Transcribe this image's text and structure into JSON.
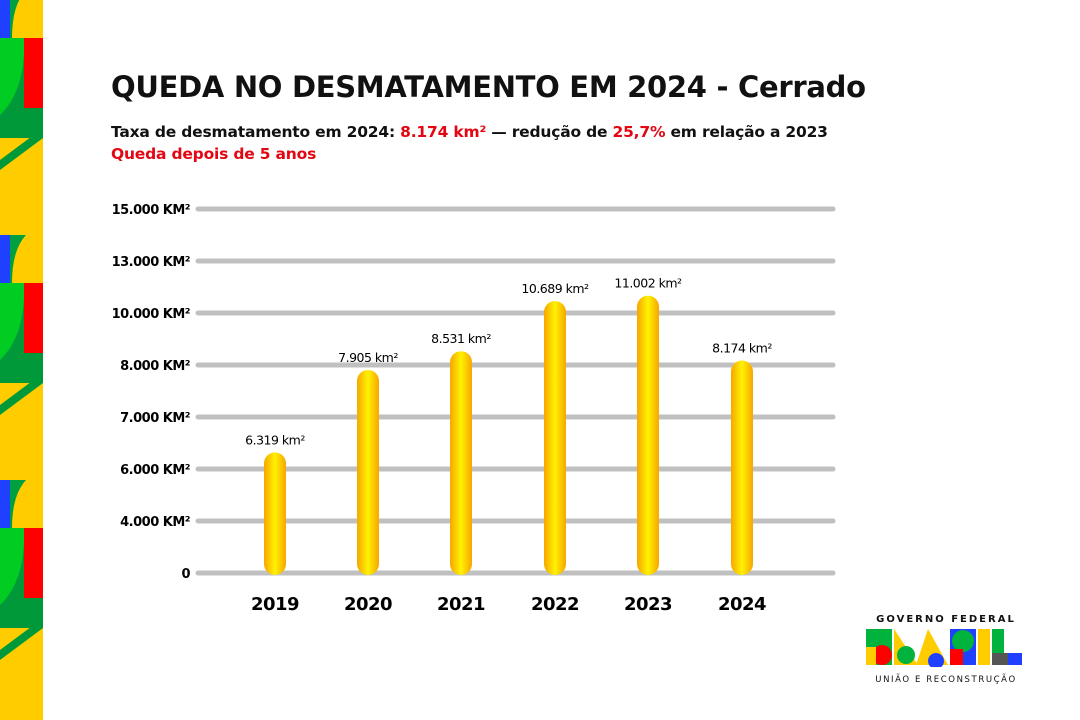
{
  "header": {
    "title": "QUEDA NO DESMATAMENTO EM 2024 - Cerrado",
    "subtitle_prefix": "Taxa de desmatamento em 2024: ",
    "subtitle_value": "8.174 km²",
    "subtitle_mid": " — redução de ",
    "subtitle_pct": "25,7%",
    "subtitle_suffix": " em relação a 2023",
    "note": "Queda depois de 5 anos"
  },
  "colors": {
    "accent_red": "#e30613",
    "bar_light": "#fff200",
    "bar_dark": "#f7a600",
    "grid": "#c0c0c0"
  },
  "chart_data": {
    "type": "bar",
    "title": "QUEDA NO DESMATAMENTO EM 2024 - Cerrado",
    "xlabel": "",
    "ylabel": "",
    "categories": [
      "2019",
      "2020",
      "2021",
      "2022",
      "2023",
      "2024"
    ],
    "values": [
      6319,
      7905,
      8531,
      10689,
      11002,
      8174
    ],
    "data_labels": [
      "6.319 km²",
      "7.905 km²",
      "8.531 km²",
      "10.689 km²",
      "11.002 km²",
      "8.174 km²"
    ],
    "y_ticks": [
      0,
      4000,
      6000,
      7000,
      8000,
      10000,
      13000,
      15000
    ],
    "y_tick_labels": [
      "0",
      "4.000 KM²",
      "6.000 KM²",
      "7.000 KM²",
      "8.000 KM²",
      "10.000 KM²",
      "13.000 KM²",
      "15.000 KM²"
    ],
    "ylim": [
      0,
      15000
    ],
    "y_scale": "non-uniform (equally spaced ticks)",
    "grid": true,
    "legend": "none"
  },
  "logo": {
    "top": "GOVERNO FEDERAL",
    "word": "BRASIL",
    "bottom": "UNIÃO E RECONSTRUÇÃO"
  }
}
